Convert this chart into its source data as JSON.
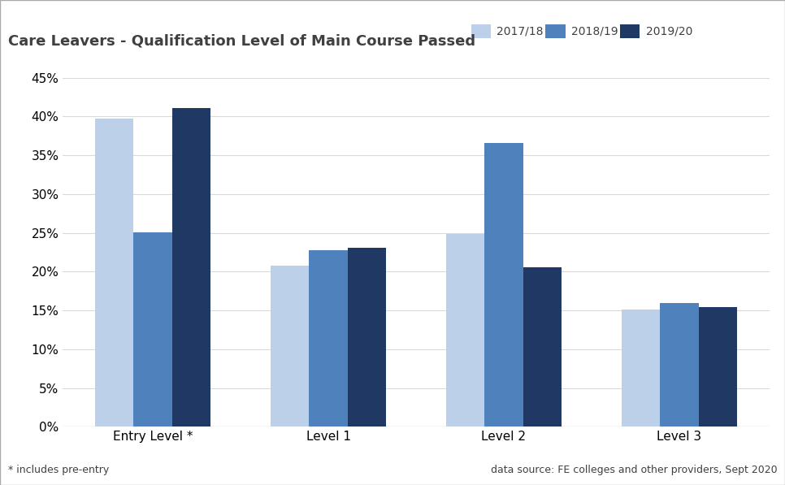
{
  "title": "Care Leavers - Qualification Level of Main Course Passed",
  "categories": [
    "Entry Level *",
    "Level 1",
    "Level 2",
    "Level 3"
  ],
  "series": {
    "2017/18": [
      0.397,
      0.208,
      0.248,
      0.151
    ],
    "2018/19": [
      0.251,
      0.228,
      0.366,
      0.16
    ],
    "2019/20": [
      0.411,
      0.231,
      0.206,
      0.154
    ]
  },
  "colors": {
    "2017/18": "#bdd0e9",
    "2018/19": "#4f81bd",
    "2019/20": "#1f3864"
  },
  "ylim": [
    0,
    0.45
  ],
  "yticks": [
    0.0,
    0.05,
    0.1,
    0.15,
    0.2,
    0.25,
    0.3,
    0.35,
    0.4,
    0.45
  ],
  "footnote_left": "* includes pre-entry",
  "footnote_right": "data source: FE colleges and other providers, Sept 2020",
  "background_color": "#ffffff",
  "grid_color": "#d9d9d9",
  "bar_width": 0.22,
  "title_fontsize": 13,
  "tick_fontsize": 11,
  "legend_fontsize": 10,
  "footnote_fontsize": 9
}
